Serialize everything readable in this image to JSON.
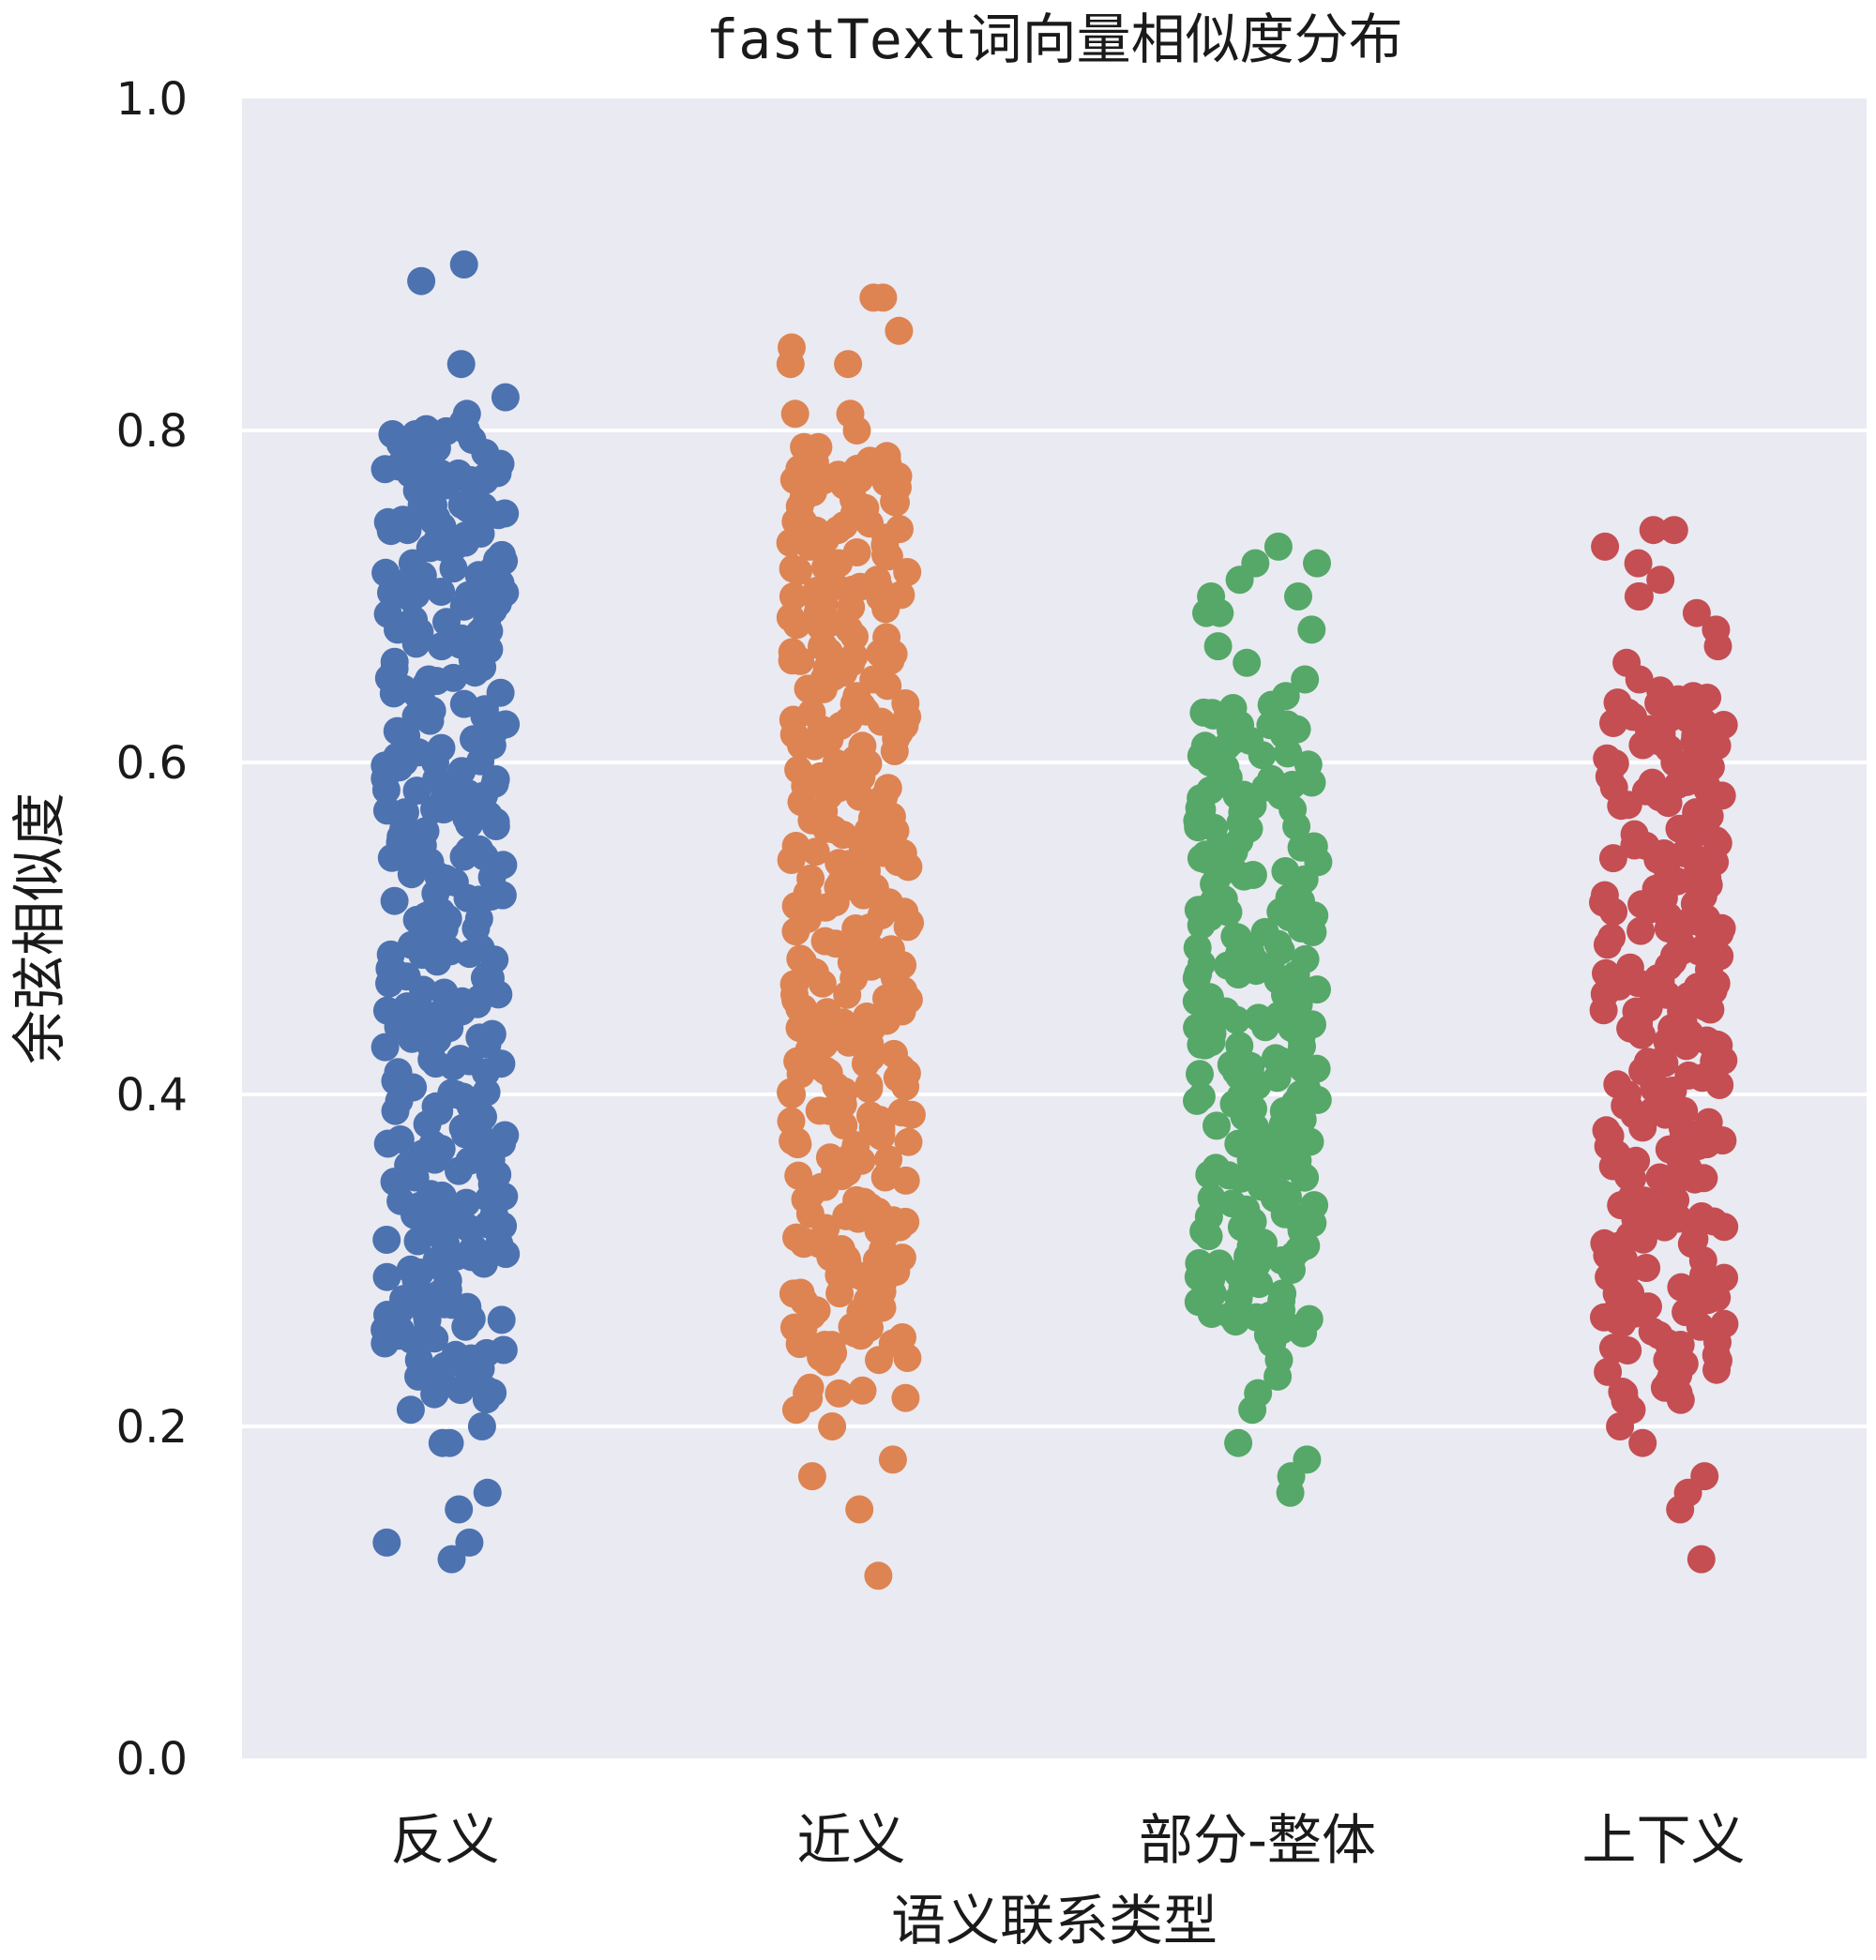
{
  "chart_data": {
    "type": "scatter",
    "subtype": "strip",
    "title": "fastText词向量相似度分布",
    "xlabel": "语义联系类型",
    "ylabel": "余弦相似度",
    "ylim": [
      0.0,
      1.0
    ],
    "yticks": [
      "0.0",
      "0.2",
      "0.4",
      "0.6",
      "0.8",
      "1.0"
    ],
    "grid": true,
    "legend": "none",
    "categories": [
      "反义",
      "近义",
      "部分-整体",
      "上下义"
    ],
    "colors": [
      "#4c72b0",
      "#dd8452",
      "#55a868",
      "#c44e52"
    ],
    "series": [
      {
        "values": [
          0.9,
          0.89,
          0.84,
          0.82,
          0.81,
          0.8,
          0.79,
          0.78,
          0.77,
          0.77,
          0.76,
          0.75,
          0.75,
          0.74,
          0.73,
          0.72,
          0.71,
          0.7,
          0.7,
          0.69,
          0.68,
          0.67,
          0.66,
          0.65,
          0.64,
          0.63,
          0.62,
          0.61,
          0.6,
          0.59,
          0.58,
          0.57,
          0.56,
          0.55,
          0.54,
          0.53,
          0.52,
          0.51,
          0.5,
          0.49,
          0.48,
          0.47,
          0.46,
          0.45,
          0.44,
          0.43,
          0.42,
          0.41,
          0.4,
          0.39,
          0.38,
          0.37,
          0.36,
          0.35,
          0.34,
          0.33,
          0.32,
          0.31,
          0.3,
          0.29,
          0.28,
          0.27,
          0.26,
          0.25,
          0.24,
          0.23,
          0.22,
          0.21,
          0.2,
          0.19,
          0.19,
          0.16,
          0.15,
          0.13,
          0.13,
          0.12
        ],
        "min": 0.12,
        "max": 0.9
      },
      {
        "values": [
          0.88,
          0.88,
          0.86,
          0.85,
          0.84,
          0.84,
          0.81,
          0.81,
          0.8,
          0.79,
          0.79,
          0.78,
          0.77,
          0.77,
          0.76,
          0.75,
          0.74,
          0.73,
          0.72,
          0.71,
          0.7,
          0.69,
          0.68,
          0.67,
          0.66,
          0.65,
          0.64,
          0.63,
          0.62,
          0.61,
          0.6,
          0.59,
          0.58,
          0.57,
          0.56,
          0.55,
          0.54,
          0.53,
          0.52,
          0.51,
          0.5,
          0.49,
          0.48,
          0.47,
          0.46,
          0.45,
          0.44,
          0.43,
          0.42,
          0.41,
          0.4,
          0.39,
          0.38,
          0.37,
          0.36,
          0.35,
          0.34,
          0.33,
          0.32,
          0.31,
          0.3,
          0.29,
          0.28,
          0.27,
          0.26,
          0.25,
          0.24,
          0.22,
          0.21,
          0.2,
          0.18,
          0.17,
          0.15,
          0.11
        ],
        "min": 0.11,
        "max": 0.88
      },
      {
        "values": [
          0.73,
          0.72,
          0.72,
          0.71,
          0.7,
          0.7,
          0.69,
          0.69,
          0.68,
          0.67,
          0.66,
          0.65,
          0.64,
          0.63,
          0.62,
          0.61,
          0.6,
          0.59,
          0.58,
          0.57,
          0.56,
          0.55,
          0.54,
          0.53,
          0.52,
          0.51,
          0.5,
          0.49,
          0.48,
          0.47,
          0.46,
          0.45,
          0.44,
          0.43,
          0.42,
          0.41,
          0.4,
          0.39,
          0.38,
          0.37,
          0.36,
          0.35,
          0.34,
          0.33,
          0.32,
          0.31,
          0.3,
          0.29,
          0.28,
          0.27,
          0.26,
          0.25,
          0.24,
          0.23,
          0.22,
          0.21,
          0.19,
          0.18,
          0.17,
          0.16
        ],
        "min": 0.16,
        "max": 0.73
      },
      {
        "values": [
          0.74,
          0.74,
          0.73,
          0.72,
          0.71,
          0.7,
          0.7,
          0.69,
          0.68,
          0.67,
          0.66,
          0.65,
          0.64,
          0.63,
          0.62,
          0.61,
          0.6,
          0.59,
          0.58,
          0.57,
          0.56,
          0.55,
          0.54,
          0.53,
          0.52,
          0.51,
          0.5,
          0.49,
          0.48,
          0.47,
          0.46,
          0.45,
          0.44,
          0.43,
          0.42,
          0.41,
          0.4,
          0.39,
          0.38,
          0.37,
          0.36,
          0.35,
          0.34,
          0.33,
          0.32,
          0.31,
          0.3,
          0.29,
          0.28,
          0.27,
          0.26,
          0.25,
          0.24,
          0.23,
          0.22,
          0.21,
          0.2,
          0.19,
          0.17,
          0.16,
          0.15,
          0.12
        ],
        "min": 0.12,
        "max": 0.74
      }
    ]
  }
}
